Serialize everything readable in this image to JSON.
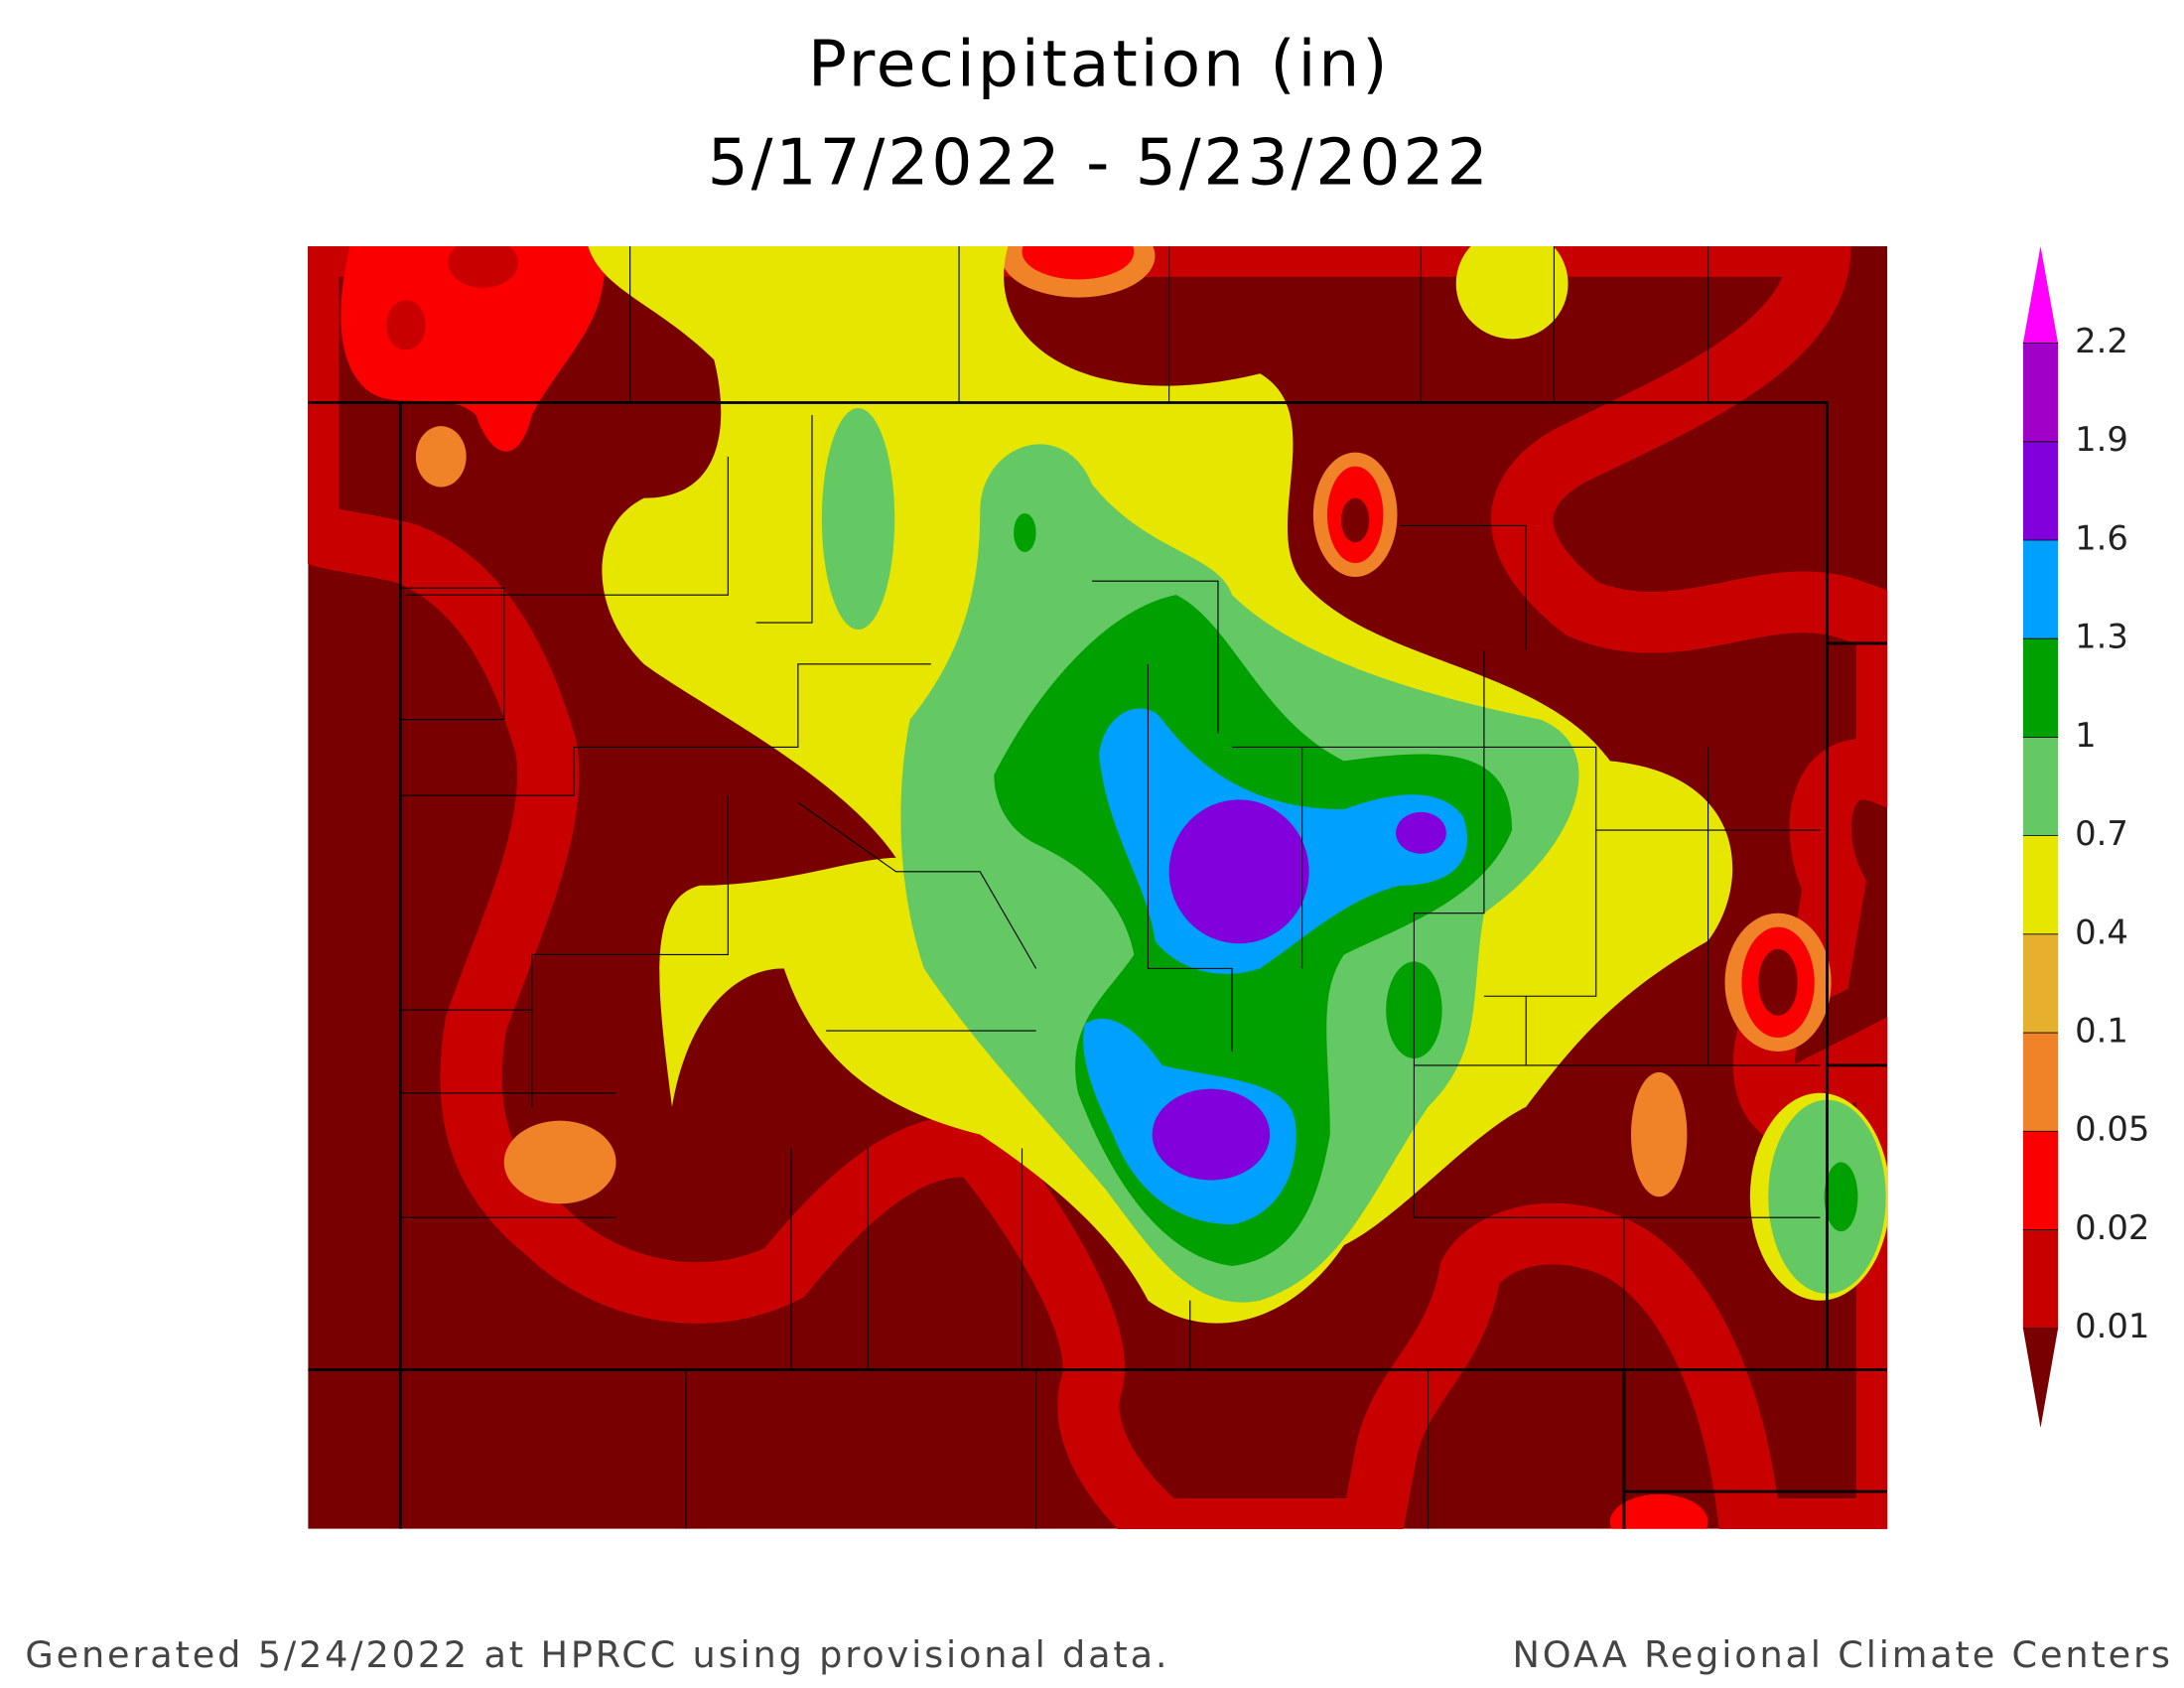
{
  "header": {
    "title": "Precipitation (in)",
    "subtitle": "5/17/2022 - 5/23/2022"
  },
  "legend": {
    "levels": [
      2.2,
      1.9,
      1.6,
      1.3,
      1,
      0.7,
      0.4,
      0.1,
      0.05,
      0.02,
      0.01
    ],
    "colors": [
      "#ff00ff",
      "#a000c8",
      "#8200dc",
      "#00a0ff",
      "#00a000",
      "#64c864",
      "#e6e600",
      "#e6af2d",
      "#f08228",
      "#fa0000",
      "#c80000",
      "#780000"
    ]
  },
  "footer": {
    "left": "Generated 5/24/2022 at HPRCC using provisional data.",
    "right": "NOAA Regional Climate Centers"
  }
}
